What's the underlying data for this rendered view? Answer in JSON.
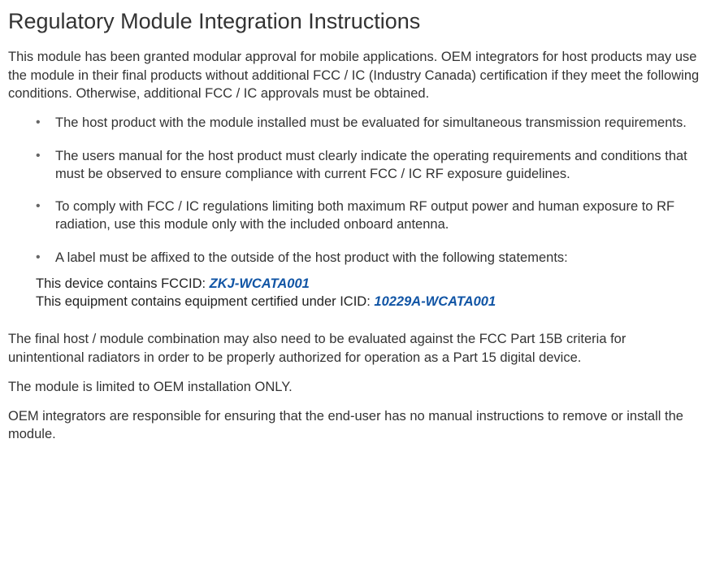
{
  "title": "Regulatory Module Integration Instructions",
  "intro": "This module has been granted modular approval for mobile applications. OEM integrators for host products may use the module in their final products without additional FCC / IC (Industry Canada) certification if they meet the following conditions. Otherwise, additional FCC / IC approvals must be obtained.",
  "bullets": {
    "b1": "The host product with the module installed must be evaluated for simultaneous transmission requirements.",
    "b2": "The users manual for the host product must clearly indicate the operating requirements and conditions that must be observed to ensure compliance with current FCC / IC RF exposure guidelines.",
    "b3": "To comply with FCC / IC regulations limiting both maximum RF output power and human exposure to RF radiation, use this module only with the included onboard antenna.",
    "b4": "A label must be affixed to the outside of the host product with the following statements:"
  },
  "label1_prefix": "This device contains FCCID: ",
  "label1_id": "ZKJ-WCATA001",
  "label2_prefix": "This equipment contains equipment certified under ICID: ",
  "label2_id": "10229A-WCATA001",
  "para2": "The final host / module combination may also need to be evaluated against the FCC Part 15B criteria for unintentional radiators in order to be properly authorized for operation as a Part 15 digital device.",
  "para3": "The module is limited to OEM installation ONLY.",
  "para4": "OEM integrators are responsible for ensuring that the end-user has no manual instructions to remove or install the module.",
  "colors": {
    "text": "#333333",
    "id": "#1155a5",
    "bullet": "#666666",
    "background": "#ffffff"
  },
  "typography": {
    "title_fontsize": 27,
    "body_fontsize": 16.5,
    "font_family": "Arial"
  }
}
